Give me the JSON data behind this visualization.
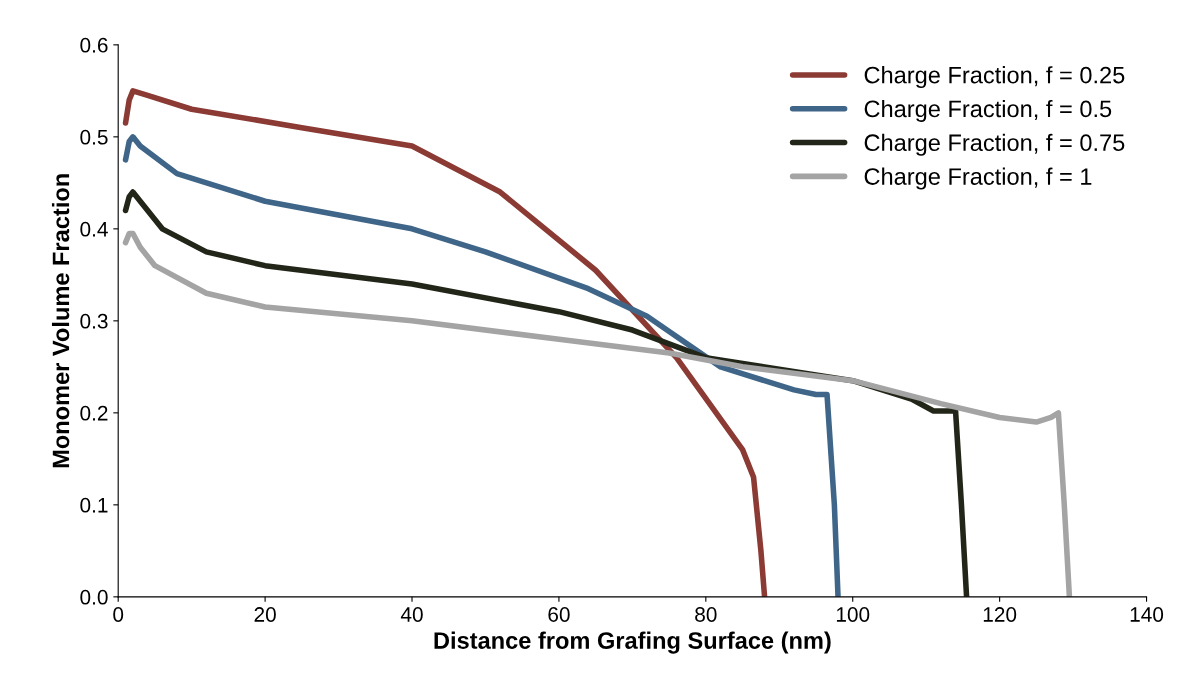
{
  "chart_data": {
    "type": "line",
    "xlabel": "Distance from Grafing Surface (nm)",
    "ylabel": "Monomer Volume Fraction",
    "xlim": [
      0,
      140
    ],
    "xticks": [
      0,
      20,
      40,
      60,
      80,
      100,
      120,
      140
    ],
    "ylim": [
      0,
      0.6
    ],
    "yticks": [
      {
        "value": 0,
        "label": "0.0"
      },
      0.1,
      0.2,
      0.3,
      0.4,
      0.5,
      0.6
    ],
    "grid": false,
    "legend": "top right",
    "marker": "none",
    "line_style": "solid",
    "series": [
      {
        "name": "Charge Fraction, f = 0.25",
        "color": "#8b3a34",
        "x": [
          1,
          1.5,
          2,
          4,
          10,
          25,
          40,
          52,
          65,
          76,
          85,
          86.5,
          87.5,
          88
        ],
        "values": [
          0.515,
          0.54,
          0.55,
          0.545,
          0.53,
          0.51,
          0.49,
          0.44,
          0.355,
          0.26,
          0.16,
          0.13,
          0.05,
          0
        ]
      },
      {
        "name": "Charge Fraction, f = 0.5",
        "color": "#3f6688",
        "x": [
          1,
          1.5,
          2,
          3,
          8,
          20,
          40,
          50,
          64,
          72,
          82,
          92,
          95,
          96.5,
          97.5,
          98
        ],
        "values": [
          0.475,
          0.495,
          0.5,
          0.49,
          0.46,
          0.43,
          0.4,
          0.375,
          0.335,
          0.305,
          0.25,
          0.225,
          0.22,
          0.22,
          0.1,
          0
        ]
      },
      {
        "name": "Charge Fraction, f = 0.75",
        "color": "#222619",
        "x": [
          1,
          1.5,
          2,
          3,
          6,
          12,
          20,
          40,
          60,
          70,
          80,
          100,
          108,
          111,
          114,
          114.8,
          115.5
        ],
        "values": [
          0.42,
          0.435,
          0.44,
          0.43,
          0.4,
          0.375,
          0.36,
          0.34,
          0.31,
          0.29,
          0.26,
          0.235,
          0.215,
          0.202,
          0.202,
          0.1,
          0
        ]
      },
      {
        "name": "Charge Fraction, f = 1",
        "color": "#a4a4a4",
        "x": [
          1,
          1.5,
          2,
          3,
          5,
          12,
          20,
          40,
          60,
          75,
          85,
          100,
          112,
          120,
          125,
          127,
          128,
          128.8,
          129.5
        ],
        "values": [
          0.385,
          0.395,
          0.395,
          0.38,
          0.36,
          0.33,
          0.315,
          0.3,
          0.28,
          0.265,
          0.25,
          0.235,
          0.21,
          0.195,
          0.19,
          0.195,
          0.2,
          0.1,
          0
        ]
      }
    ]
  }
}
